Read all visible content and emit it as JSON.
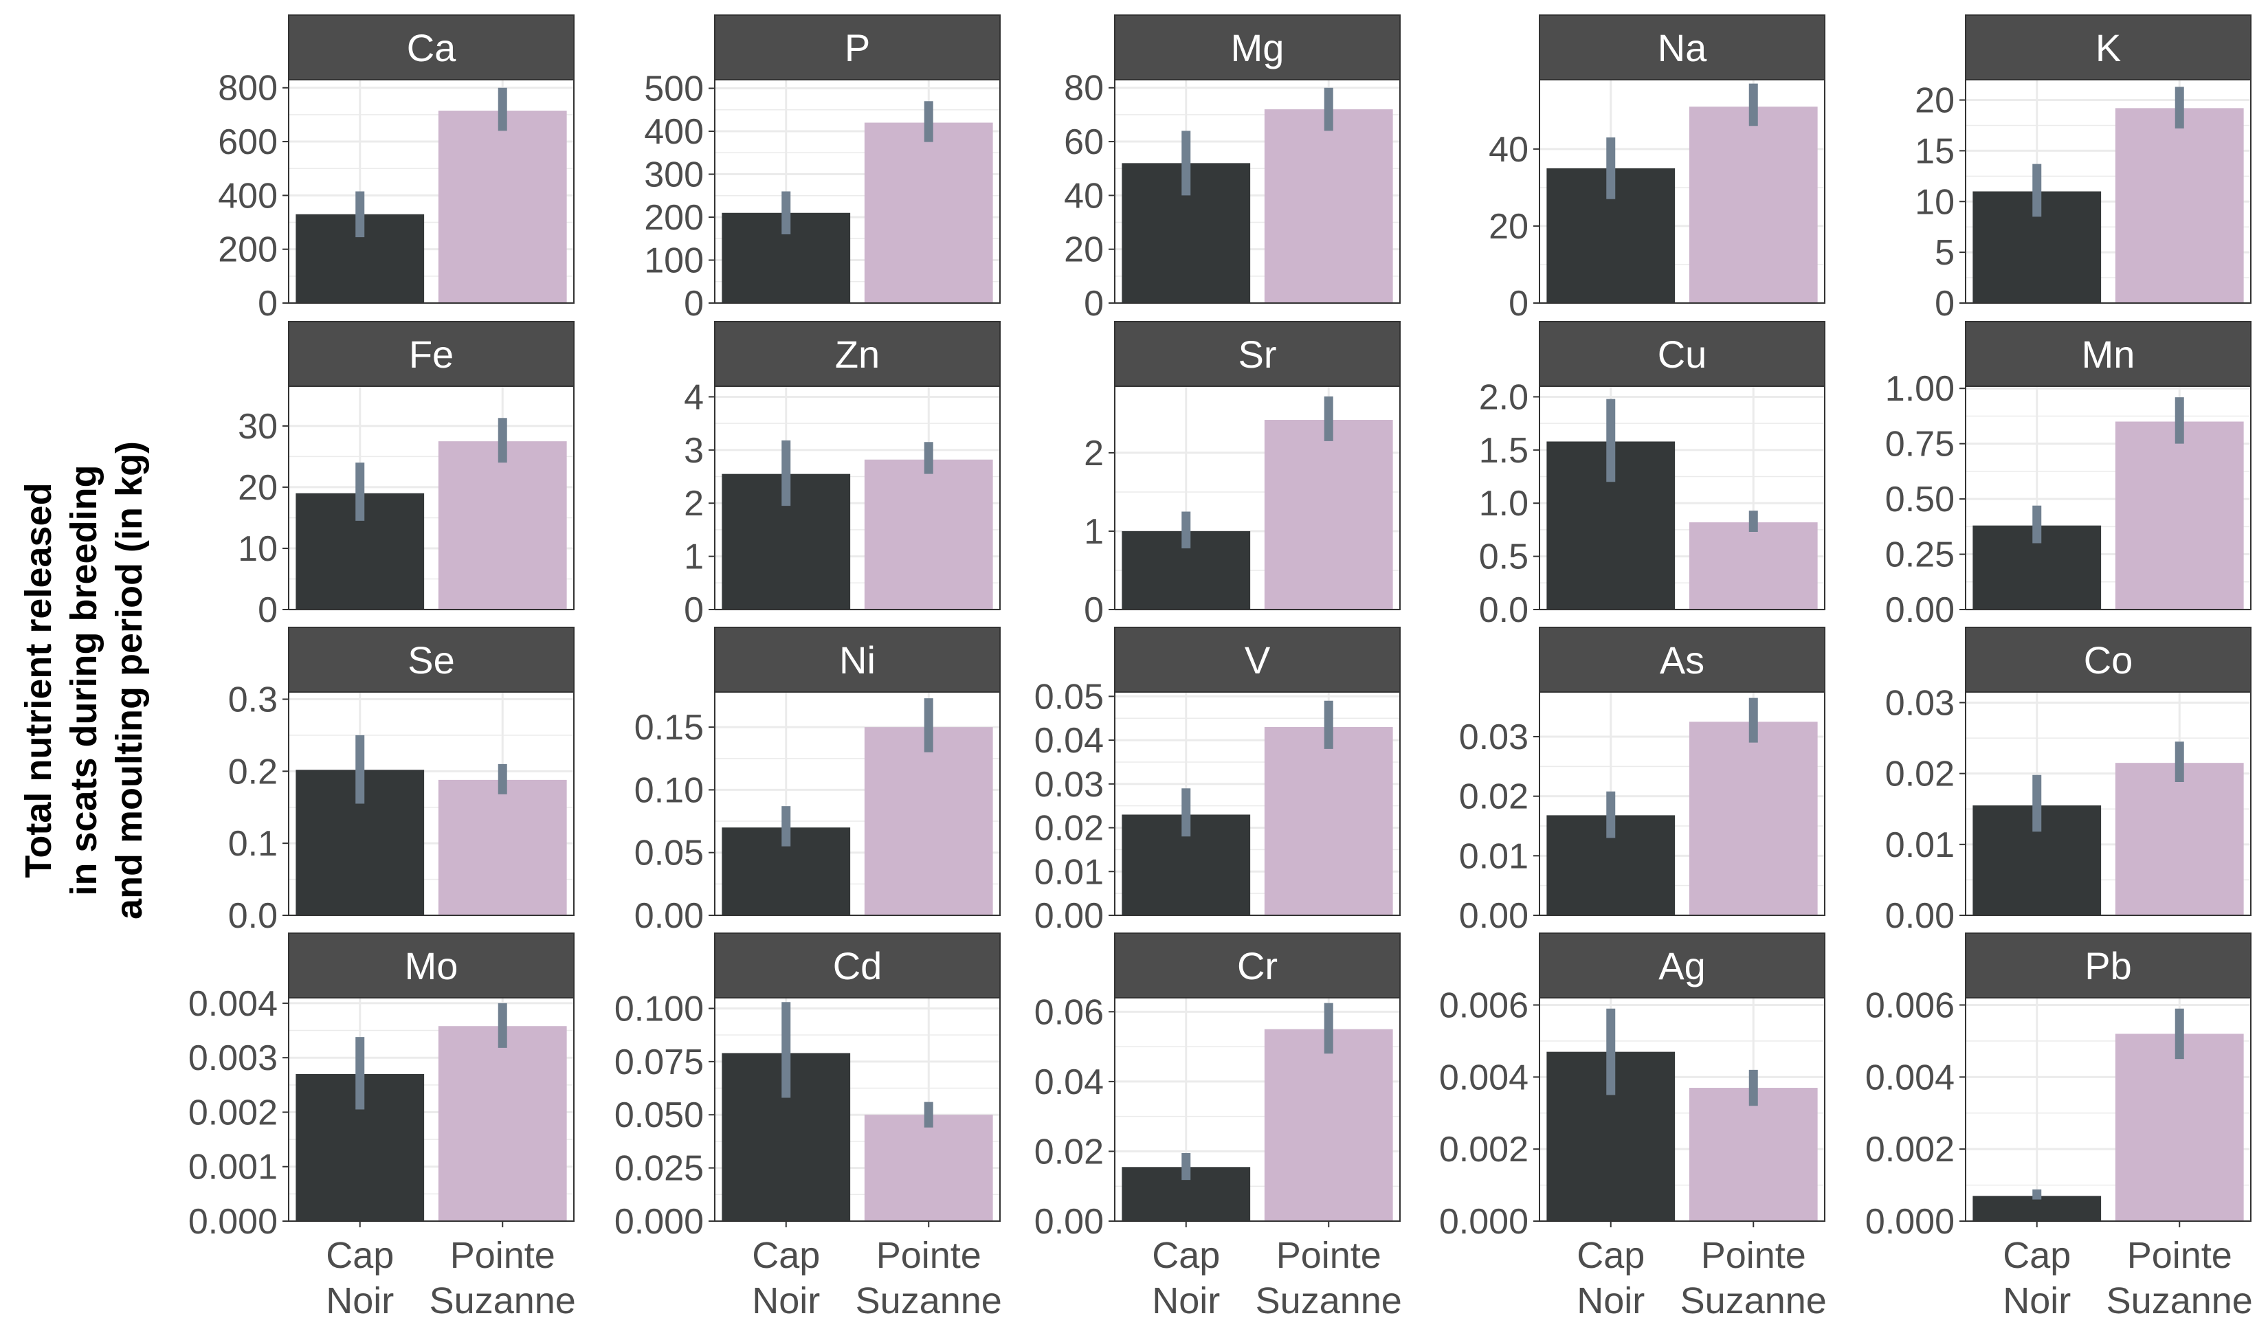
{
  "y_axis_label": {
    "line1": "Total nutrient released",
    "line2": "in scats during breeding",
    "line3": "and moulting period (in kg)"
  },
  "chart_data": {
    "type": "bar",
    "layout": "facet-grid 4 rows x 5 columns, free y scales",
    "categories": [
      {
        "line1": "Cap",
        "line2": "Noir"
      },
      {
        "line1": "Pointe",
        "line2": "Suzanne"
      }
    ],
    "colors": {
      "Cap Noir": "#343839",
      "Pointe Suzanne": "#cdb5cd",
      "error_bar": "#708090",
      "strip": "#4d4d4d",
      "grid": "#ebebeb"
    },
    "grid": true,
    "error_bars": true,
    "panels": [
      {
        "element": "Ca",
        "ylim": [
          0,
          830
        ],
        "ticks": [
          0,
          200,
          400,
          600,
          800
        ],
        "tick_labels": [
          "0",
          "200",
          "400",
          "600",
          "800"
        ],
        "values": [
          330,
          715
        ],
        "errors": [
          [
            245,
            415
          ],
          [
            640,
            800
          ]
        ]
      },
      {
        "element": "P",
        "ylim": [
          0,
          520
        ],
        "ticks": [
          0,
          100,
          200,
          300,
          400,
          500
        ],
        "tick_labels": [
          "0",
          "100",
          "200",
          "300",
          "400",
          "500"
        ],
        "values": [
          210,
          420
        ],
        "errors": [
          [
            160,
            260
          ],
          [
            375,
            470
          ]
        ]
      },
      {
        "element": "Mg",
        "ylim": [
          0,
          83
        ],
        "ticks": [
          0,
          20,
          40,
          60,
          80
        ],
        "tick_labels": [
          "0",
          "20",
          "40",
          "60",
          "80"
        ],
        "values": [
          52,
          72
        ],
        "errors": [
          [
            40,
            64
          ],
          [
            64,
            80
          ]
        ]
      },
      {
        "element": "Na",
        "ylim": [
          0,
          58
        ],
        "ticks": [
          0,
          20,
          40
        ],
        "tick_labels": [
          "0",
          "20",
          "40"
        ],
        "values": [
          35,
          51
        ],
        "errors": [
          [
            27,
            43
          ],
          [
            46,
            57
          ]
        ]
      },
      {
        "element": "K",
        "ylim": [
          0,
          22
        ],
        "ticks": [
          0,
          5,
          10,
          15,
          20
        ],
        "tick_labels": [
          "0",
          "5",
          "10",
          "15",
          "20"
        ],
        "values": [
          11,
          19.2
        ],
        "errors": [
          [
            8.5,
            13.7
          ],
          [
            17.2,
            21.3
          ]
        ]
      },
      {
        "element": "Fe",
        "ylim": [
          0,
          36.5
        ],
        "ticks": [
          0,
          10,
          20,
          30
        ],
        "tick_labels": [
          "0",
          "10",
          "20",
          "30"
        ],
        "values": [
          19,
          27.5
        ],
        "errors": [
          [
            14.5,
            24
          ],
          [
            24,
            31.3
          ]
        ]
      },
      {
        "element": "Zn",
        "ylim": [
          0,
          4.2
        ],
        "ticks": [
          0,
          1,
          2,
          3,
          4
        ],
        "tick_labels": [
          "0",
          "1",
          "2",
          "3",
          "4"
        ],
        "values": [
          2.55,
          2.82
        ],
        "errors": [
          [
            1.95,
            3.18
          ],
          [
            2.55,
            3.15
          ]
        ]
      },
      {
        "element": "Sr",
        "ylim": [
          0,
          2.85
        ],
        "ticks": [
          0,
          1,
          2
        ],
        "tick_labels": [
          "0",
          "1",
          "2"
        ],
        "values": [
          1.0,
          2.42
        ],
        "errors": [
          [
            0.78,
            1.25
          ],
          [
            2.15,
            2.72
          ]
        ]
      },
      {
        "element": "Cu",
        "ylim": [
          0,
          2.1
        ],
        "ticks": [
          0,
          0.5,
          1.0,
          1.5,
          2.0
        ],
        "tick_labels": [
          "0.0",
          "0.5",
          "1.0",
          "1.5",
          "2.0"
        ],
        "values": [
          1.58,
          0.82
        ],
        "errors": [
          [
            1.2,
            1.98
          ],
          [
            0.73,
            0.93
          ]
        ]
      },
      {
        "element": "Mn",
        "ylim": [
          0,
          1.01
        ],
        "ticks": [
          0,
          0.25,
          0.5,
          0.75,
          1.0
        ],
        "tick_labels": [
          "0.00",
          "0.25",
          "0.50",
          "0.75",
          "1.00"
        ],
        "values": [
          0.38,
          0.85
        ],
        "errors": [
          [
            0.3,
            0.47
          ],
          [
            0.75,
            0.96
          ]
        ]
      },
      {
        "element": "Se",
        "ylim": [
          0,
          0.31
        ],
        "ticks": [
          0,
          0.1,
          0.2,
          0.3
        ],
        "tick_labels": [
          "0.0",
          "0.1",
          "0.2",
          "0.3"
        ],
        "values": [
          0.202,
          0.188
        ],
        "errors": [
          [
            0.155,
            0.25
          ],
          [
            0.168,
            0.21
          ]
        ]
      },
      {
        "element": "Ni",
        "ylim": [
          0,
          0.178
        ],
        "ticks": [
          0,
          0.05,
          0.1,
          0.15
        ],
        "tick_labels": [
          "0.00",
          "0.05",
          "0.10",
          "0.15"
        ],
        "values": [
          0.07,
          0.15
        ],
        "errors": [
          [
            0.055,
            0.087
          ],
          [
            0.13,
            0.173
          ]
        ]
      },
      {
        "element": "V",
        "ylim": [
          0,
          0.051
        ],
        "ticks": [
          0,
          0.01,
          0.02,
          0.03,
          0.04,
          0.05
        ],
        "tick_labels": [
          "0.00",
          "0.01",
          "0.02",
          "0.03",
          "0.04",
          "0.05"
        ],
        "values": [
          0.023,
          0.043
        ],
        "errors": [
          [
            0.018,
            0.029
          ],
          [
            0.038,
            0.049
          ]
        ]
      },
      {
        "element": "As",
        "ylim": [
          0,
          0.0375
        ],
        "ticks": [
          0,
          0.01,
          0.02,
          0.03
        ],
        "tick_labels": [
          "0.00",
          "0.01",
          "0.02",
          "0.03"
        ],
        "values": [
          0.0168,
          0.0325
        ],
        "errors": [
          [
            0.013,
            0.0208
          ],
          [
            0.029,
            0.0365
          ]
        ]
      },
      {
        "element": "Co",
        "ylim": [
          0,
          0.0315
        ],
        "ticks": [
          0,
          0.01,
          0.02,
          0.03
        ],
        "tick_labels": [
          "0.00",
          "0.01",
          "0.02",
          "0.03"
        ],
        "values": [
          0.0155,
          0.0215
        ],
        "errors": [
          [
            0.0118,
            0.0198
          ],
          [
            0.0188,
            0.0245
          ]
        ]
      },
      {
        "element": "Mo",
        "ylim": [
          0,
          0.0041
        ],
        "ticks": [
          0,
          0.001,
          0.002,
          0.003,
          0.004
        ],
        "tick_labels": [
          "0.000",
          "0.001",
          "0.002",
          "0.003",
          "0.004"
        ],
        "values": [
          0.0027,
          0.00358
        ],
        "errors": [
          [
            0.00205,
            0.00338
          ],
          [
            0.00318,
            0.004
          ]
        ]
      },
      {
        "element": "Cd",
        "ylim": [
          0,
          0.105
        ],
        "ticks": [
          0,
          0.025,
          0.05,
          0.075,
          0.1
        ],
        "tick_labels": [
          "0.000",
          "0.025",
          "0.050",
          "0.075",
          "0.100"
        ],
        "values": [
          0.079,
          0.05
        ],
        "errors": [
          [
            0.058,
            0.103
          ],
          [
            0.044,
            0.056
          ]
        ]
      },
      {
        "element": "Cr",
        "ylim": [
          0,
          0.064
        ],
        "ticks": [
          0,
          0.02,
          0.04,
          0.06
        ],
        "tick_labels": [
          "0.00",
          "0.02",
          "0.04",
          "0.06"
        ],
        "values": [
          0.0155,
          0.055
        ],
        "errors": [
          [
            0.0118,
            0.0195
          ],
          [
            0.048,
            0.0625
          ]
        ]
      },
      {
        "element": "Ag",
        "ylim": [
          0,
          0.0062
        ],
        "ticks": [
          0,
          0.002,
          0.004,
          0.006
        ],
        "tick_labels": [
          "0.000",
          "0.002",
          "0.004",
          "0.006"
        ],
        "values": [
          0.0047,
          0.0037
        ],
        "errors": [
          [
            0.0035,
            0.0059
          ],
          [
            0.0032,
            0.0042
          ]
        ]
      },
      {
        "element": "Pb",
        "ylim": [
          0,
          0.0062
        ],
        "ticks": [
          0,
          0.002,
          0.004,
          0.006
        ],
        "tick_labels": [
          "0.000",
          "0.002",
          "0.004",
          "0.006"
        ],
        "values": [
          0.0007,
          0.0052
        ],
        "errors": [
          [
            0.0006,
            0.00088
          ],
          [
            0.0045,
            0.0059
          ]
        ]
      }
    ]
  }
}
